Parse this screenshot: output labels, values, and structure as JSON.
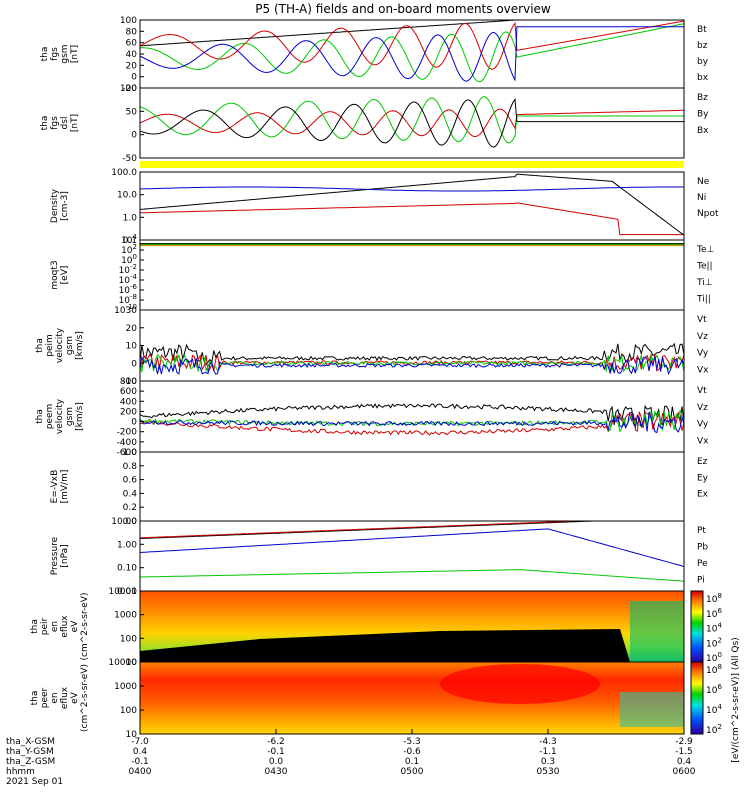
{
  "title": "P5 (TH-A) fields and on-board moments overview",
  "footer": {
    "date": "2021 Sep 01",
    "row_labels": [
      "tha_X-GSM",
      "tha_Y-GSM",
      "tha_Z-GSM",
      "hhmm"
    ],
    "rows": [
      [
        "-7.0",
        "-6.2",
        "-5.3",
        "-4.3",
        "-2.9"
      ],
      [
        "0.4",
        "-0.1",
        "-0.6",
        "-1.1",
        "-1.5"
      ],
      [
        "-0.1",
        "0.0",
        "0.1",
        "0.3",
        "0.4"
      ],
      [
        "0400",
        "0430",
        "0500",
        "0530",
        "0600"
      ]
    ]
  },
  "colorbar": {
    "label": "[eV/(cm^2-s-sr-eV)] (All Qs)",
    "ticks_top": [
      "10^8",
      "10^6",
      "10^4",
      "10^2",
      "10^0"
    ],
    "ticks_bottom": [
      "10^8",
      "10^6",
      "10^4",
      "10^2"
    ]
  },
  "chart_data": [
    {
      "type": "line",
      "ylabel": "tha fgs gsm [nT]",
      "ylim": [
        -20,
        100
      ],
      "ticks": [
        "100",
        "80",
        "60",
        "40",
        "20",
        "0",
        "-20"
      ],
      "series": [
        {
          "name": "Bt",
          "color": "#000000"
        },
        {
          "name": "bz",
          "color": "#d40000"
        },
        {
          "name": "by",
          "color": "#00c800"
        },
        {
          "name": "bx",
          "color": "#0000d0"
        }
      ]
    },
    {
      "type": "line",
      "ylabel": "tha fgs dsl [nT]",
      "ylim": [
        -70,
        105
      ],
      "ticks": [
        "100",
        "50",
        "0",
        "-50"
      ],
      "series": [
        {
          "name": "Bz",
          "color": "#d40000"
        },
        {
          "name": "By",
          "color": "#00c800"
        },
        {
          "name": "Bx",
          "color": "#000000"
        }
      ]
    },
    {
      "type": "line",
      "ylabel": "Density [cm-3]",
      "scale": "log",
      "ticks": [
        "100.0",
        "10.0",
        "1.0",
        "0.1"
      ],
      "series": [
        {
          "name": "Ne",
          "color": "#d40000"
        },
        {
          "name": "Ni",
          "color": "#000000"
        },
        {
          "name": "Npot",
          "color": "#0000d0"
        }
      ]
    },
    {
      "type": "line",
      "ylabel": "moqt3 [eV]",
      "scale": "log",
      "ticks": [
        "10^4",
        "10^2",
        "10^0",
        "10^-2",
        "10^-4",
        "10^-6",
        "10^-8",
        "10^-10"
      ],
      "series": [
        {
          "name": "Te⊥",
          "color": "#d40000"
        },
        {
          "name": "Te||",
          "color": "#000000"
        },
        {
          "name": "Ti⊥",
          "color": "#c8a800"
        },
        {
          "name": "Ti||",
          "color": "#00c800"
        }
      ]
    },
    {
      "type": "line",
      "ylabel": "tha peim velocity gsm [km/s]",
      "ylim": [
        -10,
        30
      ],
      "ticks": [
        "30",
        "20",
        "10",
        "0",
        "-10"
      ],
      "series": [
        {
          "name": "Vt",
          "color": "#000000"
        },
        {
          "name": "Vz",
          "color": "#d40000"
        },
        {
          "name": "Vy",
          "color": "#00c800"
        },
        {
          "name": "Vx",
          "color": "#0000d0"
        }
      ]
    },
    {
      "type": "line",
      "ylabel": "tha peem velocity gsm [km/s]",
      "ylim": [
        -600,
        800
      ],
      "ticks": [
        "800",
        "600",
        "400",
        "200",
        "0",
        "-200",
        "-400",
        "-600"
      ],
      "series": [
        {
          "name": "Vt",
          "color": "#000000"
        },
        {
          "name": "Vz",
          "color": "#d40000"
        },
        {
          "name": "Vy",
          "color": "#00c800"
        },
        {
          "name": "Vx",
          "color": "#0000d0"
        }
      ]
    },
    {
      "type": "line",
      "ylabel": "E=-VxB [mV/m]",
      "ylim": [
        0,
        1.0
      ],
      "ticks": [
        "1.0",
        "0.8",
        "0.6",
        "0.4",
        "0.2",
        "0.0"
      ],
      "series": [
        {
          "name": "Ez",
          "color": "#d40000"
        },
        {
          "name": "Ey",
          "color": "#00c800"
        },
        {
          "name": "Ex",
          "color": "#0000d0"
        }
      ]
    },
    {
      "type": "line",
      "ylabel": "Pressure [nPa]",
      "scale": "log",
      "ticks": [
        "10.00",
        "1.00",
        "0.10",
        "0.01"
      ],
      "series": [
        {
          "name": "Pt",
          "color": "#000000"
        },
        {
          "name": "Pb",
          "color": "#d40000"
        },
        {
          "name": "Pe",
          "color": "#00c800"
        },
        {
          "name": "Pi",
          "color": "#0000d0"
        }
      ]
    },
    {
      "type": "heatmap",
      "ylabel": "tha peir en eflux eV (cm^2-s-sr-eV)",
      "scale": "log",
      "ticks": [
        "10000",
        "1000",
        "100",
        "10"
      ]
    },
    {
      "type": "heatmap",
      "ylabel": "tha peer en eflux eV (cm^2-s-sr-eV)",
      "scale": "log",
      "ticks": [
        "10000",
        "1000",
        "100",
        "10"
      ]
    }
  ]
}
